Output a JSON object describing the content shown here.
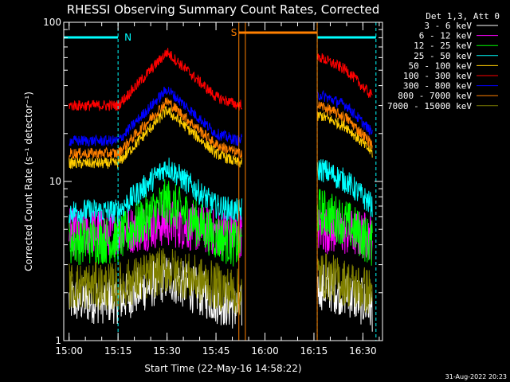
{
  "chart_data": {
    "type": "line",
    "title": "RHESSI Observing Summary Count Rates, Corrected",
    "xlabel": "Start Time (22-May-16 14:58:22)",
    "ylabel": "Corrected Count Rate (s⁻¹ detector⁻¹)",
    "yscale": "log",
    "ylim": [
      1,
      100
    ],
    "xlim": [
      "14:58:22",
      "16:36:00"
    ],
    "x_tick_labels": [
      "15:00",
      "15:15",
      "15:30",
      "15:45",
      "16:00",
      "16:15",
      "16:30"
    ],
    "y_tick_labels": [
      "1",
      "10",
      "100"
    ],
    "legend_title": "Det 1,3, Att 0",
    "legend_position": "top-right",
    "data_gap": [
      "15:53",
      "16:16"
    ],
    "series": [
      {
        "name": "3 - 6 keV",
        "color": "#ffffff",
        "x": [
          "15:00",
          "15:15",
          "15:30",
          "15:45",
          "15:52",
          "16:17",
          "16:25",
          "16:33"
        ],
        "values": [
          1.8,
          1.8,
          2.5,
          1.8,
          1.6,
          2.2,
          2.0,
          1.6
        ]
      },
      {
        "name": "6 - 12 keV",
        "color": "#ff00ff",
        "x": [
          "15:00",
          "15:15",
          "15:30",
          "15:45",
          "15:52",
          "16:17",
          "16:25",
          "16:33"
        ],
        "values": [
          4.8,
          4.8,
          5.5,
          4.8,
          4.7,
          5.0,
          4.8,
          4.5
        ]
      },
      {
        "name": "12 - 25 keV",
        "color": "#00ff00",
        "x": [
          "15:00",
          "15:15",
          "15:30",
          "15:45",
          "15:52",
          "16:17",
          "16:25",
          "16:33"
        ],
        "values": [
          4.2,
          4.3,
          7.5,
          4.5,
          4.0,
          6.5,
          5.5,
          4.0
        ]
      },
      {
        "name": "25 - 50 keV",
        "color": "#00ffff",
        "x": [
          "15:00",
          "15:15",
          "15:30",
          "15:45",
          "15:52",
          "16:17",
          "16:25",
          "16:33"
        ],
        "values": [
          6.5,
          6.5,
          12.5,
          7.0,
          6.5,
          12.0,
          10.0,
          7.0
        ]
      },
      {
        "name": "50 - 100 keV",
        "color": "#ffcc00",
        "x": [
          "15:00",
          "15:15",
          "15:30",
          "15:45",
          "15:52",
          "16:17",
          "16:25",
          "16:33"
        ],
        "values": [
          13,
          13,
          28,
          15,
          13,
          26,
          22,
          15
        ]
      },
      {
        "name": "100 - 300 keV",
        "color": "#ff0000",
        "x": [
          "15:00",
          "15:15",
          "15:30",
          "15:45",
          "15:52",
          "16:17",
          "16:25",
          "16:33"
        ],
        "values": [
          30,
          30,
          65,
          34,
          30,
          60,
          50,
          34
        ]
      },
      {
        "name": "300 - 800 keV",
        "color": "#0000ff",
        "x": [
          "15:00",
          "15:15",
          "15:30",
          "15:45",
          "15:52",
          "16:17",
          "16:25",
          "16:33"
        ],
        "values": [
          18,
          18,
          38,
          20,
          18,
          35,
          30,
          20
        ]
      },
      {
        "name": "800 - 7000 keV",
        "color": "#ff8000",
        "x": [
          "15:00",
          "15:15",
          "15:30",
          "15:45",
          "15:52",
          "16:17",
          "16:25",
          "16:33"
        ],
        "values": [
          15,
          15,
          32,
          17,
          15,
          30,
          25,
          17
        ]
      },
      {
        "name": "7000 - 15000 keV",
        "color": "#808000",
        "x": [
          "15:00",
          "15:15",
          "15:30",
          "15:45",
          "15:52",
          "16:17",
          "16:25",
          "16:33"
        ],
        "values": [
          2.2,
          2.2,
          2.8,
          2.2,
          2.0,
          2.6,
          2.3,
          2.0
        ]
      }
    ],
    "flags": [
      {
        "label": "N",
        "color": "#00ffff",
        "intervals": [
          [
            "14:58:22",
            "15:15"
          ],
          [
            "16:16",
            "16:34"
          ]
        ]
      },
      {
        "label": "S",
        "color": "#ff8000",
        "intervals": [
          [
            "15:52",
            "16:16"
          ]
        ]
      }
    ],
    "flag_boundaries": [
      {
        "color": "#00ffff",
        "x": [
          "15:15",
          "16:16",
          "16:34"
        ]
      },
      {
        "color": "#ff8000",
        "x": [
          "15:52",
          "15:54",
          "16:16"
        ]
      }
    ]
  },
  "footer": {
    "date": "31-Aug-2022 20:23"
  }
}
